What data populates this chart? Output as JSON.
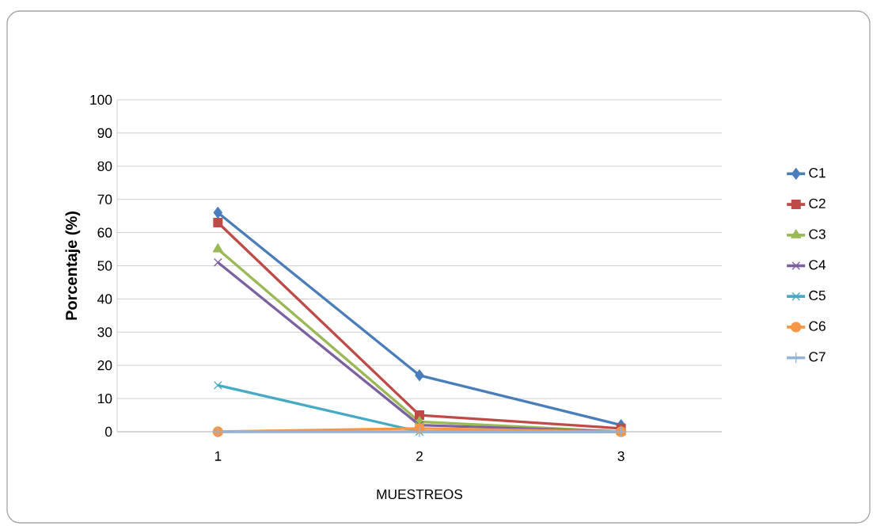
{
  "chart_data": {
    "type": "line",
    "xlabel": "MUESTREOS",
    "ylabel": "Porcentaje (%)",
    "categories": [
      "1",
      "2",
      "3"
    ],
    "ylim": [
      0,
      100
    ],
    "yticks": [
      0,
      10,
      20,
      30,
      40,
      50,
      60,
      70,
      80,
      90,
      100
    ],
    "grid": "y",
    "legend": "right",
    "line_style": "solid",
    "series": [
      {
        "name": "C1",
        "color": "#4a7ebb",
        "marker": "diamond",
        "values": [
          66,
          17,
          2
        ]
      },
      {
        "name": "C2",
        "color": "#be4b48",
        "marker": "square",
        "values": [
          63,
          5,
          1
        ]
      },
      {
        "name": "C3",
        "color": "#98b954",
        "marker": "triangle",
        "values": [
          55,
          3,
          0
        ]
      },
      {
        "name": "C4",
        "color": "#7d60a0",
        "marker": "cross",
        "values": [
          51,
          2,
          0
        ]
      },
      {
        "name": "C5",
        "color": "#46aac5",
        "marker": "cross",
        "values": [
          14,
          0,
          0
        ]
      },
      {
        "name": "C6",
        "color": "#f79646",
        "marker": "circle",
        "values": [
          0,
          1,
          0
        ]
      },
      {
        "name": "C7",
        "color": "#95b3d7",
        "marker": "plus",
        "values": [
          0,
          0,
          0
        ]
      }
    ]
  }
}
